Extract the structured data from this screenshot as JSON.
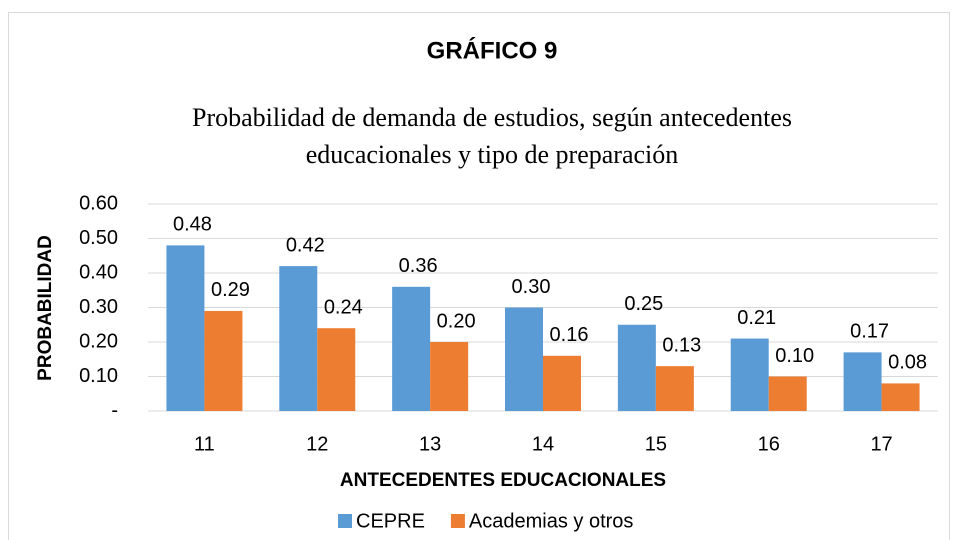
{
  "chart_data": {
    "type": "bar",
    "title": "GRÁFICO 9",
    "subtitle": [
      "Probabilidad de demanda de estudios, según antecedentes",
      "educacionales y tipo de preparación"
    ],
    "x_label": "ANTECEDENTES EDUCACIONALES",
    "y_label": "PROBABILIDAD",
    "categories": [
      "11",
      "12",
      "13",
      "14",
      "15",
      "16",
      "17"
    ],
    "series": [
      {
        "name": "CEPRE",
        "color": "#5b9bd5",
        "values": [
          0.48,
          0.42,
          0.36,
          0.3,
          0.25,
          0.21,
          0.17
        ],
        "value_labels": [
          "0.48",
          "0.42",
          "0.36",
          "0.30",
          "0.25",
          "0.21",
          "0.17"
        ]
      },
      {
        "name": "Academias y otros",
        "color": "#ed7d31",
        "values": [
          0.29,
          0.24,
          0.2,
          0.16,
          0.13,
          0.1,
          0.08
        ],
        "value_labels": [
          "0.29",
          "0.24",
          "0.20",
          "0.16",
          "0.13",
          "0.10",
          "0.08"
        ]
      }
    ],
    "ylim": [
      0,
      0.6
    ],
    "yticks": [
      {
        "value": 0,
        "label": "-"
      },
      {
        "value": 0.1,
        "label": "0.10"
      },
      {
        "value": 0.2,
        "label": "0.20"
      },
      {
        "value": 0.3,
        "label": "0.30"
      },
      {
        "value": 0.4,
        "label": "0.40"
      },
      {
        "value": 0.5,
        "label": "0.50"
      },
      {
        "value": 0.6,
        "label": "0.60"
      }
    ],
    "grid": true,
    "legend": "bottom"
  }
}
